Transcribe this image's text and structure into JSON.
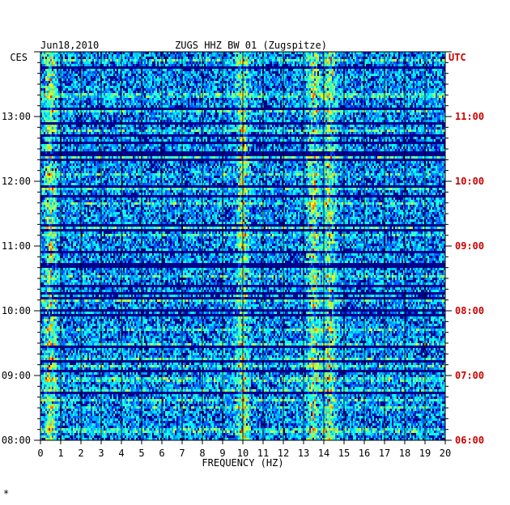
{
  "header": {
    "date": "Jun18,2010",
    "station": "ZUGS HHZ BW 01 (Zugspitze)",
    "left_tz": "CES",
    "right_tz": "UTC"
  },
  "footer_mark": "*",
  "colors": {
    "background": "#ffffff",
    "text": "#000000",
    "utc_text": "#cc0000",
    "low_energy": "#00008b",
    "mid_energy": "#1e90ff",
    "high_energy": "#ffff00"
  },
  "chart_data": {
    "type": "heatmap",
    "title": "ZUGS HHZ BW 01 (Zugspitze)",
    "xlabel": "FREQUENCY (HZ)",
    "x_ticks": [
      "0",
      "1",
      "2",
      "3",
      "4",
      "5",
      "6",
      "7",
      "8",
      "9",
      "10",
      "11",
      "12",
      "13",
      "14",
      "15",
      "16",
      "17",
      "18",
      "19",
      "20"
    ],
    "xlim": [
      0,
      20
    ],
    "left_time_ticks": [
      "13:00",
      "12:00",
      "11:00",
      "10:00",
      "09:00",
      "08:00"
    ],
    "right_time_ticks": [
      "11:00",
      "10:00",
      "09:00",
      "08:00",
      "07:00",
      "06:00"
    ],
    "ylim_local": [
      "08:00",
      "14:00"
    ],
    "colormap": "jet",
    "dominant_bands_hz": [
      0.5,
      10,
      13.5,
      14.3
    ]
  }
}
